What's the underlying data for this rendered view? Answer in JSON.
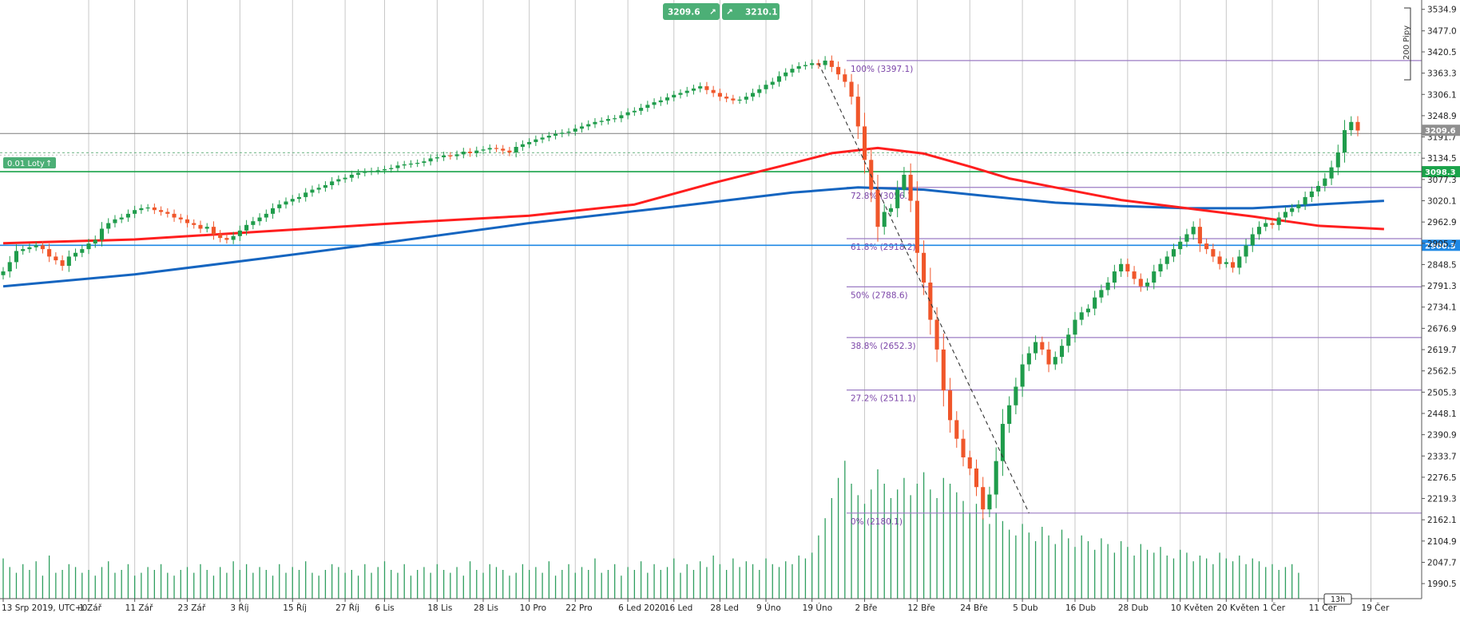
{
  "chart_data": {
    "type": "candlestick",
    "timezone_label": "UTC+0",
    "ylim": [
      1950,
      3560
    ],
    "y_ticks": [
      "3534.9",
      "3477.0",
      "3420.5",
      "3363.3",
      "3306.1",
      "3248.9",
      "3191.7",
      "3134.5",
      "3077.3",
      "3020.1",
      "2962.9",
      "2905.7",
      "2848.5",
      "2791.3",
      "2734.1",
      "2676.9",
      "2619.7",
      "2562.5",
      "2505.3",
      "2448.1",
      "2390.9",
      "2333.7",
      "2276.5",
      "2219.3",
      "2162.1",
      "2104.9",
      "2047.7",
      "1990.5"
    ],
    "x_labels": [
      {
        "label": "13 Srp 2019, UTC+0",
        "i": 0
      },
      {
        "label": "1 Zář",
        "i": 13
      },
      {
        "label": "11 Zář",
        "i": 20
      },
      {
        "label": "23 Zář",
        "i": 28
      },
      {
        "label": "3 Říj",
        "i": 36
      },
      {
        "label": "15 Říj",
        "i": 44
      },
      {
        "label": "27 Říj",
        "i": 52
      },
      {
        "label": "6 Lis",
        "i": 58
      },
      {
        "label": "18 Lis",
        "i": 66
      },
      {
        "label": "28 Lis",
        "i": 73
      },
      {
        "label": "10 Pro",
        "i": 80
      },
      {
        "label": "22 Pro",
        "i": 87
      },
      {
        "label": "6 Led 2020",
        "i": 95
      },
      {
        "label": "16 Led",
        "i": 102
      },
      {
        "label": "28 Led",
        "i": 109
      },
      {
        "label": "9 Úno",
        "i": 116
      },
      {
        "label": "19 Úno",
        "i": 123
      },
      {
        "label": "2 Bře",
        "i": 131
      },
      {
        "label": "12 Bře",
        "i": 139
      },
      {
        "label": "24 Bře",
        "i": 147
      },
      {
        "label": "5 Dub",
        "i": 155
      },
      {
        "label": "16 Dub",
        "i": 163
      },
      {
        "label": "28 Dub",
        "i": 171
      },
      {
        "label": "10 Květen",
        "i": 179
      },
      {
        "label": "20 Květen",
        "i": 186
      },
      {
        "label": "1 Čer",
        "i": 193
      },
      {
        "label": "11 Čer",
        "i": 200
      },
      {
        "label": "19 Čer",
        "i": 208
      }
    ],
    "closes": [
      2830,
      2855,
      2885,
      2890,
      2895,
      2900,
      2890,
      2870,
      2860,
      2845,
      2870,
      2880,
      2890,
      2905,
      2915,
      2945,
      2960,
      2970,
      2975,
      2985,
      2995,
      3000,
      3002,
      2995,
      2990,
      2985,
      2975,
      2970,
      2960,
      2955,
      2945,
      2950,
      2930,
      2920,
      2915,
      2925,
      2940,
      2955,
      2965,
      2975,
      2985,
      3000,
      3010,
      3018,
      3025,
      3030,
      3042,
      3050,
      3055,
      3062,
      3072,
      3078,
      3082,
      3090,
      3095,
      3098,
      3100,
      3102,
      3105,
      3108,
      3115,
      3118,
      3120,
      3122,
      3126,
      3134,
      3137,
      3142,
      3140,
      3145,
      3152,
      3148,
      3155,
      3158,
      3162,
      3160,
      3155,
      3150,
      3165,
      3172,
      3178,
      3185,
      3190,
      3195,
      3200,
      3203,
      3206,
      3214,
      3220,
      3226,
      3232,
      3235,
      3240,
      3242,
      3250,
      3258,
      3262,
      3270,
      3278,
      3285,
      3290,
      3298,
      3305,
      3310,
      3316,
      3322,
      3328,
      3318,
      3310,
      3300,
      3295,
      3290,
      3292,
      3300,
      3310,
      3320,
      3332,
      3340,
      3355,
      3365,
      3375,
      3382,
      3385,
      3390,
      3385,
      3397,
      3380,
      3360,
      3340,
      3300,
      3220,
      3130,
      3050,
      2950,
      2990,
      3000,
      3050,
      3090,
      3020,
      2880,
      2800,
      2700,
      2620,
      2510,
      2430,
      2380,
      2330,
      2300,
      2250,
      2190,
      2230,
      2320,
      2420,
      2470,
      2520,
      2580,
      2610,
      2640,
      2620,
      2580,
      2600,
      2630,
      2660,
      2700,
      2720,
      2730,
      2760,
      2780,
      2800,
      2830,
      2850,
      2830,
      2810,
      2790,
      2800,
      2830,
      2850,
      2870,
      2890,
      2910,
      2930,
      2950,
      2905,
      2890,
      2870,
      2850,
      2855,
      2840,
      2870,
      2900,
      2930,
      2950,
      2960,
      2955,
      2975,
      2990,
      3000,
      3010,
      3030,
      3045,
      3060,
      3080,
      3110,
      3150,
      3210,
      3232,
      3209
    ],
    "ma_red": {
      "name": "",
      "color": "#ff1e1e",
      "points": [
        [
          0,
          2906
        ],
        [
          20,
          2916
        ],
        [
          40,
          2938
        ],
        [
          60,
          2960
        ],
        [
          80,
          2980
        ],
        [
          96,
          3010
        ],
        [
          108,
          3068
        ],
        [
          118,
          3112
        ],
        [
          126,
          3148
        ],
        [
          133,
          3162
        ],
        [
          140,
          3147
        ],
        [
          147,
          3112
        ],
        [
          153,
          3080
        ],
        [
          160,
          3056
        ],
        [
          170,
          3022
        ],
        [
          180,
          3000
        ],
        [
          190,
          2978
        ],
        [
          200,
          2953
        ],
        [
          210,
          2944
        ]
      ]
    },
    "ma_blue": {
      "name": "",
      "color": "#1565c0",
      "points": [
        [
          0,
          2790
        ],
        [
          20,
          2822
        ],
        [
          40,
          2866
        ],
        [
          60,
          2912
        ],
        [
          80,
          2960
        ],
        [
          100,
          3000
        ],
        [
          120,
          3042
        ],
        [
          130,
          3056
        ],
        [
          140,
          3050
        ],
        [
          150,
          3032
        ],
        [
          160,
          3015
        ],
        [
          170,
          3006
        ],
        [
          180,
          3000
        ],
        [
          190,
          3000
        ],
        [
          200,
          3010
        ],
        [
          210,
          3020
        ]
      ]
    },
    "volume": [
      14,
      11,
      9,
      12,
      10,
      13,
      8,
      15,
      9,
      10,
      12,
      11,
      9,
      10,
      8,
      11,
      13,
      9,
      10,
      12,
      8,
      9,
      11,
      10,
      12,
      9,
      8,
      10,
      11,
      9,
      12,
      10,
      8,
      11,
      9,
      13,
      10,
      12,
      9,
      11,
      10,
      8,
      12,
      9,
      11,
      10,
      13,
      9,
      8,
      10,
      12,
      11,
      9,
      10,
      8,
      12,
      9,
      11,
      13,
      10,
      9,
      12,
      8,
      10,
      11,
      9,
      12,
      10,
      9,
      11,
      8,
      13,
      10,
      9,
      12,
      11,
      10,
      8,
      9,
      12,
      10,
      11,
      9,
      13,
      8,
      10,
      12,
      9,
      11,
      10,
      14,
      9,
      10,
      12,
      8,
      11,
      10,
      13,
      9,
      12,
      10,
      11,
      14,
      9,
      12,
      10,
      13,
      11,
      15,
      12,
      10,
      14,
      11,
      13,
      12,
      10,
      14,
      12,
      11,
      13,
      12,
      15,
      14,
      16,
      22,
      28,
      35,
      42,
      48,
      40,
      36,
      33,
      38,
      45,
      40,
      35,
      38,
      42,
      36,
      40,
      44,
      38,
      35,
      42,
      40,
      37,
      34,
      30,
      33,
      28,
      26,
      30,
      27,
      24,
      22,
      26,
      23,
      20,
      25,
      22,
      19,
      24,
      21,
      18,
      22,
      20,
      17,
      21,
      19,
      16,
      20,
      18,
      15,
      19,
      17,
      16,
      18,
      15,
      14,
      17,
      16,
      13,
      15,
      14,
      12,
      16,
      14,
      13,
      15,
      12,
      14,
      13,
      11,
      12,
      10,
      11,
      12,
      9
    ],
    "fib_levels": [
      {
        "label": "100% (3397.1)",
        "value": 3397.1
      },
      {
        "label": "72.8% (3056.)",
        "value": 3056.0
      },
      {
        "label": "61.8% (2918.2)",
        "value": 2918.2
      },
      {
        "label": "50% (2788.6)",
        "value": 2788.6
      },
      {
        "label": "38.8% (2652.3)",
        "value": 2652.3
      },
      {
        "label": "27.2% (2511.1)",
        "value": 2511.1
      },
      {
        "label": "0% (2180.1)",
        "value": 2180.1
      }
    ],
    "levels": [
      {
        "value": 3098.3,
        "label": "3098.3",
        "color": "#1aa34a"
      },
      {
        "value": 2900.3,
        "label": "2900.3",
        "color": "#1e88e5"
      },
      {
        "value": 3201.0,
        "label": "",
        "color": "#7c7c7c"
      }
    ],
    "current_price": {
      "label": "3209.6",
      "value": 3209.6
    },
    "trend_line": {
      "from": [
        124,
        3390
      ],
      "to": [
        156,
        2180
      ]
    }
  },
  "ui": {
    "bid_button": "3209.6",
    "ask_button": "3210.1",
    "lots_label": "0.01 Loty",
    "scale_label": "200 Pipy",
    "timeframe_label": "13h"
  }
}
